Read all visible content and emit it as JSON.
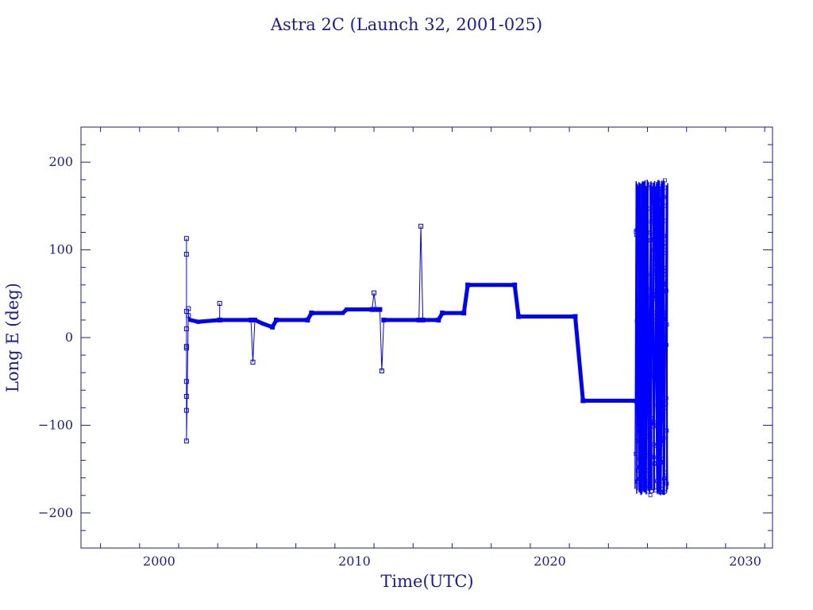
{
  "chart_data": {
    "type": "line",
    "title": "Astra 2C (Launch 32, 2001-025)",
    "xlabel": "Time(UTC)",
    "ylabel": "Long E (deg)",
    "xlim": [
      1996,
      2031.4
    ],
    "ylim": [
      -240,
      240
    ],
    "x_ticks": [
      2000,
      2010,
      2020,
      2030
    ],
    "y_ticks": [
      200,
      100,
      0,
      -100,
      -200
    ],
    "x_tick_labels": [
      "2000",
      "2010",
      "2020",
      "2030"
    ],
    "y_tick_labels": [
      "200",
      "100",
      "0",
      "−100",
      "−200"
    ],
    "grid": false,
    "color": "#0000ff",
    "series": [
      {
        "points": [
          [
            2001.4,
            113
          ],
          [
            2001.4,
            95
          ],
          [
            2001.4,
            30
          ],
          [
            2001.4,
            10
          ],
          [
            2001.4,
            -10
          ],
          [
            2001.4,
            -12
          ],
          [
            2001.4,
            -50
          ],
          [
            2001.4,
            -67
          ],
          [
            2001.4,
            -83
          ],
          [
            2001.4,
            -118
          ],
          [
            2001.5,
            33
          ],
          [
            2001.5,
            25
          ],
          [
            2001.6,
            20
          ],
          [
            2002.0,
            18
          ],
          [
            2003.1,
            20
          ],
          [
            2003.1,
            39
          ],
          [
            2003.1,
            20
          ],
          [
            2004.7,
            20
          ],
          [
            2004.8,
            -28
          ],
          [
            2004.9,
            20
          ],
          [
            2005.3,
            16
          ],
          [
            2005.8,
            12
          ],
          [
            2006.0,
            20
          ],
          [
            2007.6,
            20
          ],
          [
            2007.8,
            28
          ],
          [
            2009.4,
            28
          ],
          [
            2009.6,
            32
          ],
          [
            2010.9,
            32
          ],
          [
            2011.0,
            51
          ],
          [
            2011.1,
            32
          ],
          [
            2011.3,
            32
          ],
          [
            2011.4,
            -38
          ],
          [
            2011.5,
            20
          ],
          [
            2013.3,
            20
          ],
          [
            2013.4,
            127
          ],
          [
            2013.5,
            20
          ],
          [
            2014.3,
            20
          ],
          [
            2014.5,
            28
          ],
          [
            2015.6,
            28
          ],
          [
            2015.8,
            60
          ],
          [
            2018.2,
            60
          ],
          [
            2018.4,
            24
          ],
          [
            2021.3,
            24
          ],
          [
            2021.7,
            -72
          ],
          [
            2024.5,
            -72
          ]
        ]
      }
    ],
    "oscillation_region": {
      "x": [
        2024.4,
        2026.0
      ],
      "y": [
        -180,
        180
      ]
    }
  }
}
